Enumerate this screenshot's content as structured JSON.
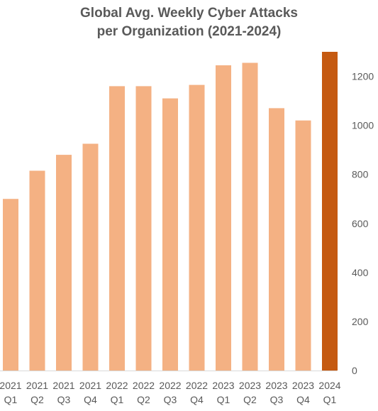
{
  "chart_data": {
    "type": "bar",
    "title_lines": [
      "Global Avg. Weekly Cyber Attacks",
      "per Organization (2021-2024)"
    ],
    "categories": [
      [
        "2021",
        "Q1"
      ],
      [
        "2021",
        "Q2"
      ],
      [
        "2021",
        "Q3"
      ],
      [
        "2021",
        "Q4"
      ],
      [
        "2022",
        "Q1"
      ],
      [
        "2022",
        "Q2"
      ],
      [
        "2022",
        "Q3"
      ],
      [
        "2022",
        "Q4"
      ],
      [
        "2023",
        "Q1"
      ],
      [
        "2023",
        "Q2"
      ],
      [
        "2023",
        "Q3"
      ],
      [
        "2023",
        "Q4"
      ],
      [
        "2024",
        "Q1"
      ]
    ],
    "values": [
      700,
      815,
      880,
      925,
      1160,
      1160,
      1110,
      1165,
      1245,
      1255,
      1070,
      1020,
      1300
    ],
    "highlight_index": 12,
    "colors": {
      "bar": "#F4B183",
      "highlight": "#C55A11",
      "text": "#595959",
      "axis": "#D9D9D9"
    },
    "ylim": [
      0,
      1300
    ],
    "yticks": [
      0,
      200,
      400,
      600,
      800,
      1000,
      1200
    ],
    "y_axis_position": "right",
    "grid": false,
    "legend": "none"
  }
}
